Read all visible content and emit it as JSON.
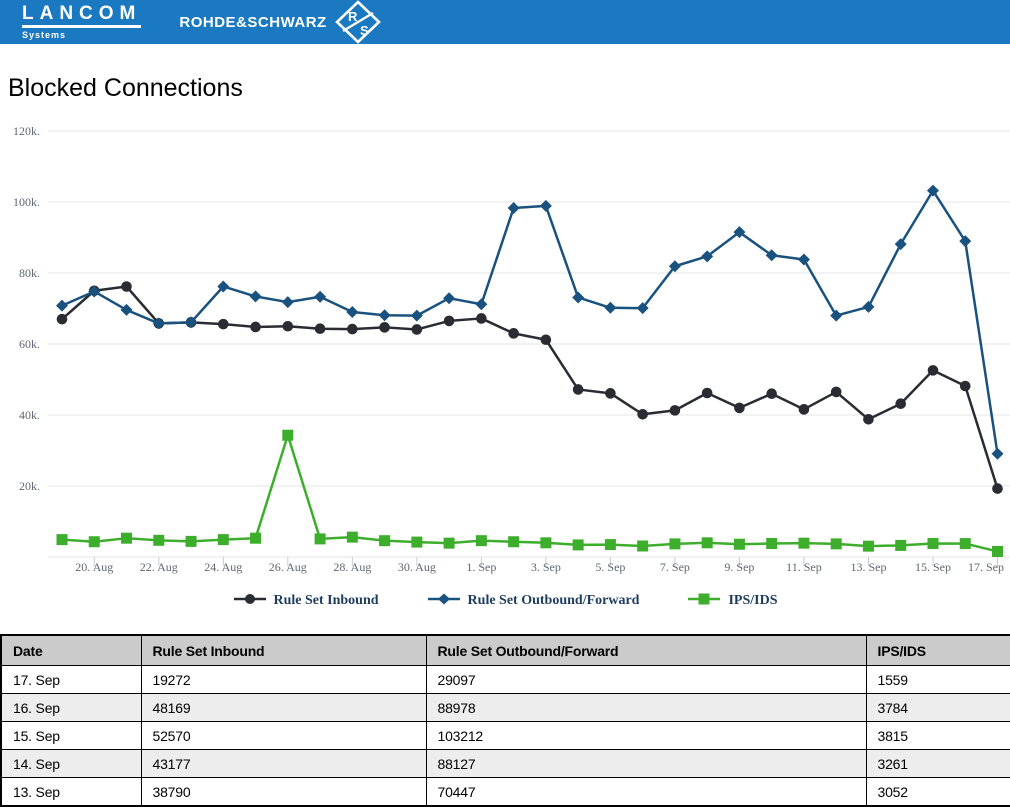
{
  "header": {
    "bar_color": "#1a79c1",
    "lancom": {
      "wordmark": "LANCOM",
      "subtitle": "Systems"
    },
    "rohde_schwarz": {
      "wordmark": "ROHDE&SCHWARZ",
      "logo_letters": [
        "R",
        "S"
      ]
    }
  },
  "page": {
    "title": "Blocked Connections"
  },
  "chart_data": {
    "type": "line",
    "title": "Blocked Connections",
    "grid": "horizontal",
    "legend_position": "bottom",
    "ylim": [
      0,
      125000
    ],
    "x": [
      "19. Aug",
      "20. Aug",
      "21. Aug",
      "22. Aug",
      "23. Aug",
      "24. Aug",
      "25. Aug",
      "26. Aug",
      "27. Aug",
      "28. Aug",
      "29. Aug",
      "30. Aug",
      "31. Aug",
      "1. Sep",
      "2. Sep",
      "3. Sep",
      "4. Sep",
      "5. Sep",
      "6. Sep",
      "7. Sep",
      "8. Sep",
      "9. Sep",
      "10. Sep",
      "11. Sep",
      "12. Sep",
      "13. Sep",
      "14. Sep",
      "15. Sep",
      "16. Sep",
      "17. Sep"
    ],
    "x_tick_labels": [
      "20. Aug",
      "22. Aug",
      "24. Aug",
      "26. Aug",
      "28. Aug",
      "30. Aug",
      "1. Sep",
      "3. Sep",
      "5. Sep",
      "7. Sep",
      "9. Sep",
      "11. Sep",
      "13. Sep",
      "15. Sep",
      "17. Sep"
    ],
    "y_ticks": [
      {
        "value": 20000,
        "label": "20k."
      },
      {
        "value": 40000,
        "label": "40k."
      },
      {
        "value": 60000,
        "label": "60k."
      },
      {
        "value": 80000,
        "label": "80k."
      },
      {
        "value": 100000,
        "label": "100k."
      },
      {
        "value": 120000,
        "label": "120k."
      }
    ],
    "series": [
      {
        "name": "Rule Set Inbound",
        "color": "#292c33",
        "marker": "circle",
        "values": [
          67000,
          75000,
          76200,
          65800,
          66100,
          65600,
          64800,
          65000,
          64300,
          64200,
          64700,
          64100,
          66500,
          67200,
          63000,
          61200,
          47200,
          46100,
          40200,
          41300,
          46200,
          42000,
          46000,
          41600,
          46500,
          38790,
          43177,
          52570,
          48169,
          19272
        ]
      },
      {
        "name": "Rule Set Outbound/Forward",
        "color": "#1a527f",
        "marker": "diamond",
        "values": [
          70800,
          74800,
          69600,
          65800,
          66100,
          76200,
          73400,
          71800,
          73300,
          69000,
          68100,
          68000,
          72900,
          71200,
          98300,
          98900,
          73100,
          70200,
          70100,
          81900,
          84700,
          91500,
          85000,
          83800,
          68000,
          70447,
          88127,
          103212,
          88978,
          29097
        ]
      },
      {
        "name": "IPS/IDS",
        "color": "#3dae2c",
        "marker": "square",
        "values": [
          4900,
          4300,
          5300,
          4700,
          4400,
          4900,
          5300,
          34300,
          5100,
          5600,
          4600,
          4200,
          3900,
          4600,
          4300,
          4000,
          3400,
          3500,
          3100,
          3700,
          4000,
          3600,
          3800,
          3900,
          3700,
          3052,
          3261,
          3815,
          3784,
          1559
        ]
      }
    ],
    "colors": {
      "grid": "#e5e5e5",
      "tick": "#c2cdd8",
      "tick_label": "#5d6772"
    }
  },
  "table": {
    "headers": [
      "Date",
      "Rule Set Inbound",
      "Rule Set Outbound/Forward",
      "IPS/IDS"
    ],
    "rows": [
      [
        "17. Sep",
        "19272",
        "29097",
        "1559"
      ],
      [
        "16. Sep",
        "48169",
        "88978",
        "3784"
      ],
      [
        "15. Sep",
        "52570",
        "103212",
        "3815"
      ],
      [
        "14. Sep",
        "43177",
        "88127",
        "3261"
      ],
      [
        "13. Sep",
        "38790",
        "70447",
        "3052"
      ]
    ]
  }
}
